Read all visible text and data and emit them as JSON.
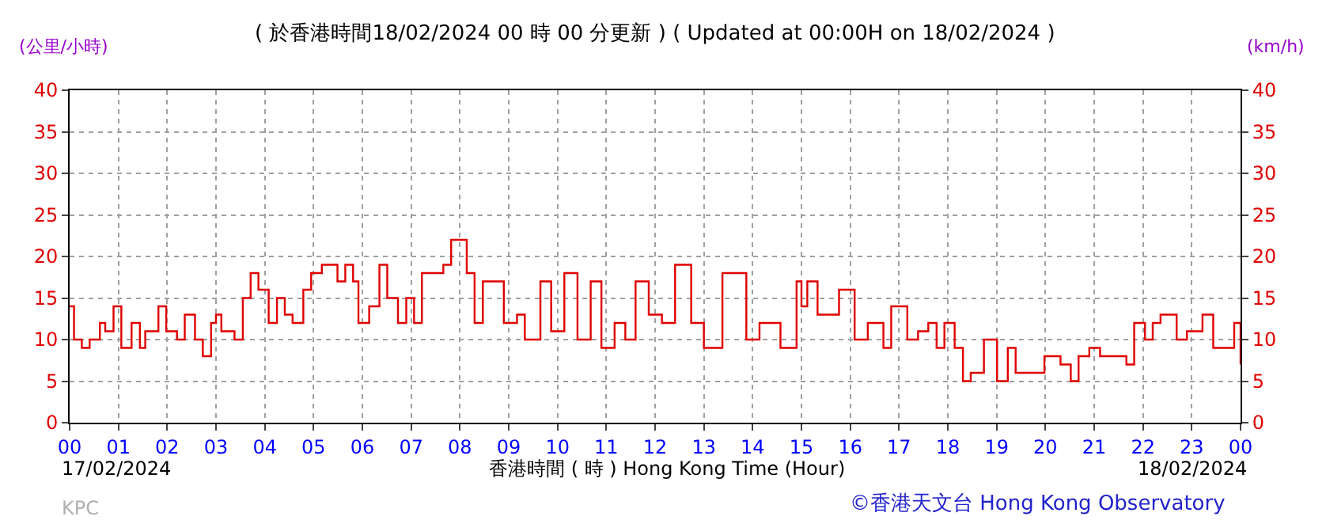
{
  "chart_data": {
    "type": "step",
    "title": "( 於香港時間18/02/2024 00 時 00 分更新 ) ( Updated at 00:00H on 18/02/2024 )",
    "xlabel": "香港時間 ( 時 ) Hong Kong Time (Hour)",
    "ylabel": "(公里/小時)",
    "y2label": "(km/h)",
    "annotations": [
      "17/02/2024",
      "18/02/2024",
      "KPC",
      "©香港天文台 Hong Kong Observatory"
    ],
    "x": [
      0,
      0.09,
      0.25,
      0.41,
      0.62,
      0.73,
      0.9,
      1.06,
      1.17,
      1.27,
      1.44,
      1.55,
      1.71,
      1.82,
      1.98,
      2.2,
      2.36,
      2.57,
      2.73,
      2.9,
      3.0,
      3.11,
      3.38,
      3.55,
      3.71,
      3.87,
      4.08,
      4.25,
      4.41,
      4.57,
      4.79,
      4.95,
      5.11,
      5.17,
      5.38,
      5.49,
      5.65,
      5.81,
      5.92,
      6.14,
      6.35,
      6.51,
      6.73,
      6.9,
      7.06,
      7.22,
      7.66,
      7.82,
      8.14,
      8.3,
      8.47,
      8.74,
      8.9,
      9.17,
      9.33,
      9.65,
      9.87,
      10.14,
      10.41,
      10.68,
      10.9,
      11.17,
      11.39,
      11.6,
      11.87,
      12.14,
      12.41,
      12.74,
      13.0,
      13.38,
      13.71,
      13.87,
      14.14,
      14.36,
      14.57,
      14.9,
      15.0,
      15.12,
      15.33,
      15.77,
      16.09,
      16.36,
      16.68,
      16.84,
      17.17,
      17.39,
      17.6,
      17.77,
      17.93,
      18.14,
      18.31,
      18.47,
      18.74,
      19.01,
      19.23,
      19.39,
      19.88,
      19.98,
      20.2,
      20.31,
      20.52,
      20.68,
      20.9,
      21.12,
      21.6,
      21.66,
      21.82,
      22.04,
      22.2,
      22.36,
      22.69,
      22.9,
      23.22,
      23.44,
      23.71,
      23.87,
      24
    ],
    "series": [
      {
        "color": "#e00000",
        "values": [
          14,
          10,
          9,
          10,
          12,
          11,
          14,
          9,
          9,
          12,
          9,
          11,
          11,
          14,
          11,
          10,
          13,
          10,
          8,
          12,
          13,
          11,
          10,
          15,
          18,
          16,
          12,
          15,
          13,
          12,
          16,
          18,
          18,
          19,
          19,
          17,
          19,
          17,
          12,
          14,
          19,
          15,
          12,
          15,
          12,
          18,
          19,
          22,
          18,
          12,
          17,
          17,
          12,
          13,
          10,
          17,
          11,
          18,
          10,
          17,
          9,
          12,
          10,
          17,
          13,
          12,
          19,
          12,
          9,
          18,
          18,
          10,
          12,
          12,
          9,
          17,
          14,
          17,
          13,
          16,
          10,
          12,
          9,
          14,
          10,
          11,
          12,
          9,
          12,
          9,
          5,
          6,
          10,
          5,
          9,
          6,
          6,
          8,
          8,
          7,
          5,
          8,
          9,
          8,
          8,
          7,
          12,
          10,
          12,
          13,
          10,
          11,
          13,
          9,
          9,
          12,
          7
        ]
      }
    ],
    "xlim": [
      0,
      24
    ],
    "xticks": [
      {
        "value": 0,
        "label": "00"
      },
      {
        "value": 1,
        "label": "01"
      },
      {
        "value": 2,
        "label": "02"
      },
      {
        "value": 3,
        "label": "03"
      },
      {
        "value": 4,
        "label": "04"
      },
      {
        "value": 5,
        "label": "05"
      },
      {
        "value": 6,
        "label": "06"
      },
      {
        "value": 7,
        "label": "07"
      },
      {
        "value": 8,
        "label": "08"
      },
      {
        "value": 9,
        "label": "09"
      },
      10,
      11,
      12,
      13,
      14,
      15,
      16,
      17,
      18,
      19,
      20,
      21,
      22,
      23,
      {
        "value": 24,
        "label": "00"
      }
    ],
    "ylim": [
      0,
      40
    ],
    "yticks": [
      0,
      5,
      10,
      15,
      20,
      25,
      30,
      35,
      40
    ],
    "y2lim": [
      0,
      40
    ],
    "y2ticks": [
      0,
      5,
      10,
      15,
      20,
      25,
      30,
      35,
      40
    ],
    "grid": true,
    "legend": false,
    "line_style": "solid",
    "marker": "none"
  }
}
